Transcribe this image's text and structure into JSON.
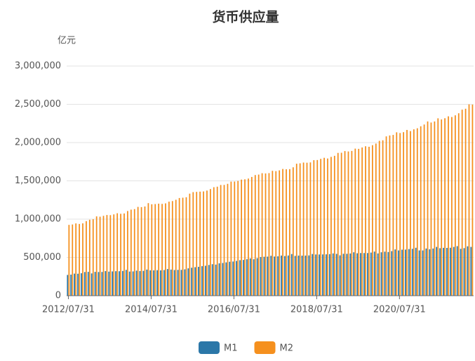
{
  "chart_data": {
    "type": "bar",
    "title": "货币供应量",
    "y_label": "亿元",
    "categories": [
      "2012/07/31",
      null,
      null,
      null,
      null,
      null,
      null,
      null,
      null,
      null,
      null,
      null,
      null,
      null,
      null,
      null,
      null,
      null,
      null,
      null,
      null,
      null,
      null,
      null,
      "2014/07/31",
      null,
      null,
      null,
      null,
      null,
      null,
      null,
      null,
      null,
      null,
      null,
      null,
      null,
      null,
      null,
      null,
      null,
      null,
      null,
      null,
      null,
      null,
      null,
      "2016/07/31",
      null,
      null,
      null,
      null,
      null,
      null,
      null,
      null,
      null,
      null,
      null,
      null,
      null,
      null,
      null,
      null,
      null,
      null,
      null,
      null,
      null,
      null,
      null,
      "2018/07/31",
      null,
      null,
      null,
      null,
      null,
      null,
      null,
      null,
      null,
      null,
      null,
      null,
      null,
      null,
      null,
      null,
      null,
      null,
      null,
      null,
      null,
      null,
      null,
      "2020/07/31",
      null,
      null,
      null,
      null,
      null,
      null,
      null,
      null,
      null,
      null,
      null,
      null,
      null,
      null,
      null,
      null,
      null,
      null,
      null,
      null,
      null
    ],
    "series": [
      {
        "name": "M1",
        "color": "#2b77a8",
        "values": [
          271000,
          275000,
          288000,
          287000,
          293000,
          309000,
          311000,
          291000,
          311000,
          309000,
          310000,
          321000,
          314000,
          317000,
          320000,
          319000,
          323000,
          337000,
          315000,
          317000,
          327000,
          322000,
          324000,
          341000,
          331000,
          331000,
          333000,
          331000,
          335000,
          348000,
          341000,
          335000,
          337000,
          337000,
          344000,
          357000,
          365000,
          372000,
          377000,
          386000,
          391000,
          401000,
          411000,
          406000,
          423000,
          427000,
          435000,
          443000,
          446000,
          454000,
          464000,
          467000,
          476000,
          487000,
          476000,
          490000,
          505000,
          508000,
          510000,
          521000,
          511000,
          515000,
          524000,
          518000,
          525000,
          544000,
          520000,
          524000,
          523000,
          524000,
          526000,
          544000,
          538000,
          538000,
          539000,
          540000,
          543000,
          552000,
          546000,
          527000,
          547000,
          547000,
          551000,
          567000,
          554000,
          557000,
          557000,
          557000,
          563000,
          576000,
          552000,
          567000,
          575000,
          570000,
          582000,
          604000,
          591000,
          601000,
          602000,
          609000,
          612000,
          626000,
          591000,
          591000,
          616000,
          606000,
          616000,
          637000,
          620000,
          625000,
          624000,
          626000,
          637000,
          647000,
          612000,
          621000,
          645000,
          637000
        ]
      },
      {
        "name": "M2",
        "color": "#f5901e",
        "values": [
          925000,
          930000,
          944000,
          937000,
          945000,
          974000,
          992000,
          999000,
          1036000,
          1032000,
          1043000,
          1054000,
          1052000,
          1062000,
          1077000,
          1070000,
          1074000,
          1106000,
          1124000,
          1131000,
          1160000,
          1157000,
          1165000,
          1209000,
          1194000,
          1197000,
          1202000,
          1199000,
          1206000,
          1228000,
          1236000,
          1253000,
          1276000,
          1280000,
          1286000,
          1333000,
          1353000,
          1356000,
          1359000,
          1362000,
          1373000,
          1393000,
          1417000,
          1424000,
          1446000,
          1447000,
          1461000,
          1490000,
          1491000,
          1499000,
          1516000,
          1520000,
          1530000,
          1551000,
          1576000,
          1582000,
          1600000,
          1597000,
          1601000,
          1631000,
          1627000,
          1637000,
          1655000,
          1651000,
          1653000,
          1677000,
          1724000,
          1729000,
          1739000,
          1737000,
          1741000,
          1770000,
          1772000,
          1787000,
          1801000,
          1792000,
          1813000,
          1827000,
          1865000,
          1867000,
          1889000,
          1884000,
          1891000,
          1921000,
          1918000,
          1936000,
          1952000,
          1945000,
          1966000,
          1987000,
          2023000,
          2030000,
          2081000,
          2093000,
          2100000,
          2134000,
          2125000,
          2136000,
          2165000,
          2150000,
          2173000,
          2187000,
          2213000,
          2236000,
          2276000,
          2262000,
          2276000,
          2317000,
          2302000,
          2318000,
          2343000,
          2334000,
          2356000,
          2383000,
          2430000,
          2442000,
          2499000,
          2496000
        ]
      }
    ],
    "ylim": [
      0,
      3000000
    ],
    "yticks": [
      0,
      {
        "value": 500000,
        "label": "500,000"
      },
      {
        "value": 1000000,
        "label": "1,000,000"
      },
      {
        "value": 1500000,
        "label": "1,500,000"
      },
      {
        "value": 2000000,
        "label": "2,000,000"
      },
      {
        "value": 2500000,
        "label": "2,500,000"
      },
      {
        "value": 3000000,
        "label": "3,000,000"
      }
    ],
    "grid": true,
    "legend": "bottom"
  }
}
